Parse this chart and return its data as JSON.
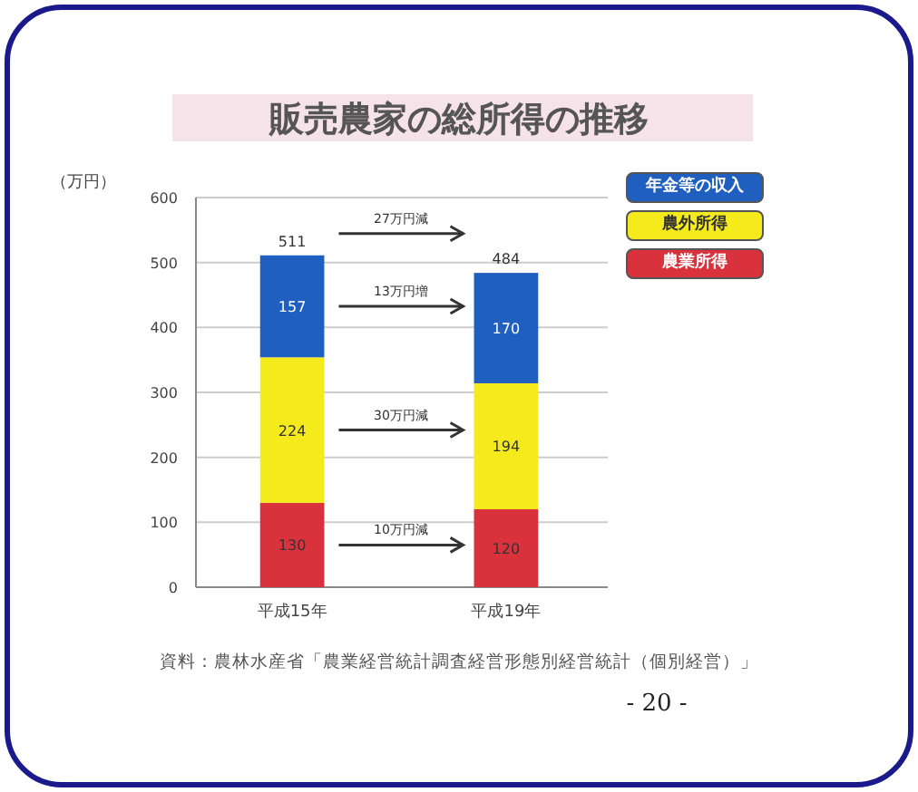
{
  "chart_data": {
    "type": "bar",
    "title": "販売農家の総所得の推移",
    "ylabel": "（万円）",
    "categories": [
      "平成15年",
      "平成19年"
    ],
    "series": [
      {
        "name": "農業所得",
        "color": "#d9323c",
        "values": [
          130,
          120
        ]
      },
      {
        "name": "農外所得",
        "color": "#f5ea1c",
        "values": [
          224,
          194
        ]
      },
      {
        "name": "年金等の収入",
        "color": "#1f5fbf",
        "values": [
          157,
          170
        ]
      }
    ],
    "stacked": true,
    "data_labels": true,
    "totals": [
      "511",
      "484"
    ],
    "ylim": [
      0,
      600
    ],
    "yticks": [
      0,
      100,
      200,
      300,
      400,
      500,
      600
    ],
    "grid": "y",
    "legend": "top right",
    "annotations": [
      "27万円減",
      "13万円増",
      "30万円減",
      "10万円減",
      "資料：農林水産省「農業経営統計調査経営形態別経営統計（個別経営）」",
      "- 20 -"
    ]
  }
}
